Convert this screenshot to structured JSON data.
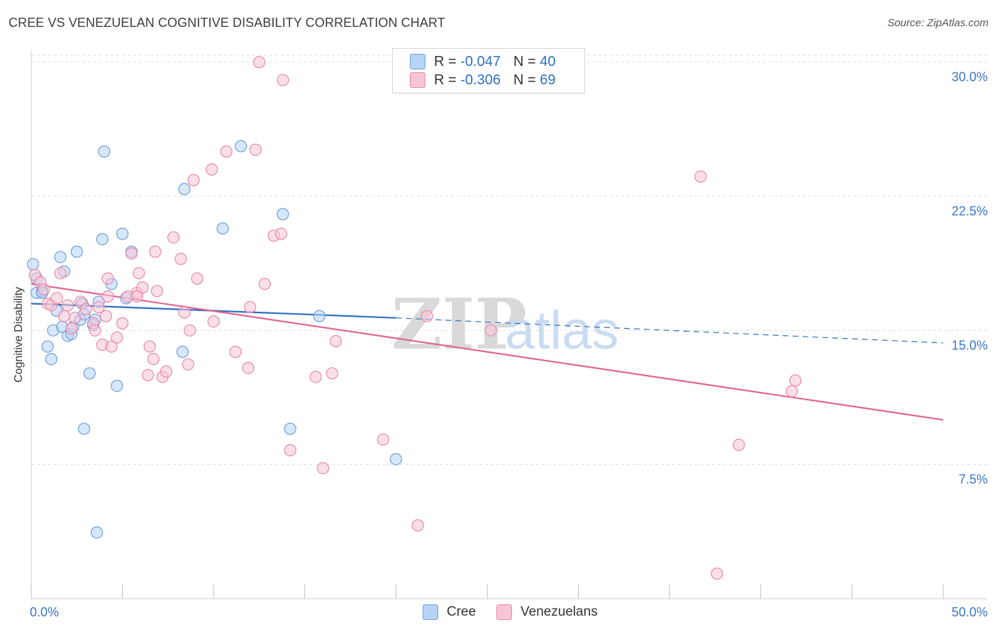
{
  "title": "CREE VS VENEZUELAN COGNITIVE DISABILITY CORRELATION CHART",
  "source": "Source: ZipAtlas.com",
  "watermark": {
    "zip": "ZIP",
    "atlas": "atlas"
  },
  "legend_top": [
    {
      "r_label": "R =",
      "r_value": "-0.047",
      "n_label": "N =",
      "n_value": "40"
    },
    {
      "r_label": "R =",
      "r_value": "-0.306",
      "n_label": "N =",
      "n_value": "69"
    }
  ],
  "legend_bottom": [
    {
      "label": "Cree"
    },
    {
      "label": "Venezuelans"
    }
  ],
  "colors": {
    "cree_fill": "#b7d3f5",
    "cree_stroke": "#6f9fdc",
    "cree_line": "#2e6fc4",
    "venez_fill": "#f8c5d6",
    "venez_stroke": "#e88aaa",
    "venez_line": "#e06592",
    "tick_text": "#3a76c8",
    "grid": "#dddddd"
  },
  "chart_data": {
    "type": "scatter",
    "title": "CREE VS VENEZUELAN COGNITIVE DISABILITY CORRELATION CHART",
    "xlabel": "",
    "ylabel": "Cognitive Disability",
    "xlim": [
      0,
      50
    ],
    "ylim": [
      0,
      30.7
    ],
    "x_tick_labels": [
      {
        "value": 0,
        "label": "0.0%"
      },
      {
        "value": 50,
        "label": "50.0%"
      }
    ],
    "y_ticks": [
      {
        "value": 7.5,
        "label": "7.5%"
      },
      {
        "value": 15.0,
        "label": "15.0%"
      },
      {
        "value": 22.5,
        "label": "22.5%"
      },
      {
        "value": 30.0,
        "label": "30.0%"
      }
    ],
    "x_minor_ticks": [
      0,
      5,
      10,
      15,
      20,
      25,
      30,
      35,
      40,
      45,
      50
    ],
    "grid": true,
    "legend_placement": "top-center",
    "series": [
      {
        "name": "Cree",
        "points": [
          [
            0.1,
            18.7
          ],
          [
            0.3,
            17.9
          ],
          [
            0.3,
            17.1
          ],
          [
            0.6,
            17.2
          ],
          [
            0.6,
            17.1
          ],
          [
            0.9,
            14.1
          ],
          [
            1.1,
            13.4
          ],
          [
            1.2,
            15.0
          ],
          [
            1.4,
            16.1
          ],
          [
            1.6,
            19.1
          ],
          [
            1.7,
            15.2
          ],
          [
            1.8,
            18.3
          ],
          [
            2.0,
            14.7
          ],
          [
            2.2,
            14.8
          ],
          [
            2.3,
            15.2
          ],
          [
            2.5,
            19.4
          ],
          [
            2.7,
            15.6
          ],
          [
            2.8,
            16.5
          ],
          [
            2.9,
            15.9
          ],
          [
            2.9,
            9.5
          ],
          [
            3.2,
            12.6
          ],
          [
            3.4,
            15.3
          ],
          [
            3.5,
            15.6
          ],
          [
            3.6,
            3.7
          ],
          [
            3.7,
            16.6
          ],
          [
            3.9,
            20.1
          ],
          [
            4.0,
            25.0
          ],
          [
            4.4,
            17.6
          ],
          [
            4.7,
            11.9
          ],
          [
            5.0,
            20.4
          ],
          [
            5.2,
            16.8
          ],
          [
            5.5,
            19.4
          ],
          [
            8.3,
            13.8
          ],
          [
            8.4,
            22.9
          ],
          [
            10.5,
            20.7
          ],
          [
            11.5,
            25.3
          ],
          [
            13.8,
            21.5
          ],
          [
            14.2,
            9.5
          ],
          [
            20.0,
            7.8
          ],
          [
            15.8,
            15.8
          ]
        ]
      },
      {
        "name": "Venezuelans",
        "points": [
          [
            0.2,
            18.1
          ],
          [
            0.5,
            17.7
          ],
          [
            0.7,
            17.3
          ],
          [
            0.9,
            16.5
          ],
          [
            1.1,
            16.4
          ],
          [
            1.4,
            16.8
          ],
          [
            1.6,
            18.2
          ],
          [
            1.8,
            15.8
          ],
          [
            2.0,
            16.4
          ],
          [
            2.2,
            15.1
          ],
          [
            2.4,
            15.7
          ],
          [
            2.7,
            16.6
          ],
          [
            3.0,
            16.2
          ],
          [
            3.4,
            15.4
          ],
          [
            3.5,
            15.0
          ],
          [
            3.7,
            16.3
          ],
          [
            3.9,
            14.2
          ],
          [
            4.1,
            15.8
          ],
          [
            4.2,
            17.9
          ],
          [
            4.4,
            14.1
          ],
          [
            4.7,
            14.6
          ],
          [
            5.0,
            15.4
          ],
          [
            5.3,
            16.9
          ],
          [
            5.5,
            19.3
          ],
          [
            5.8,
            17.1
          ],
          [
            5.9,
            18.2
          ],
          [
            6.1,
            17.4
          ],
          [
            6.4,
            12.5
          ],
          [
            6.5,
            14.1
          ],
          [
            6.7,
            13.4
          ],
          [
            6.9,
            17.2
          ],
          [
            7.2,
            12.4
          ],
          [
            7.4,
            12.7
          ],
          [
            7.8,
            20.2
          ],
          [
            8.2,
            19.0
          ],
          [
            8.4,
            16.0
          ],
          [
            8.6,
            13.1
          ],
          [
            8.7,
            15.0
          ],
          [
            8.9,
            23.4
          ],
          [
            9.1,
            17.9
          ],
          [
            9.9,
            24.0
          ],
          [
            10.0,
            15.5
          ],
          [
            10.7,
            25.0
          ],
          [
            11.2,
            13.8
          ],
          [
            11.9,
            12.9
          ],
          [
            12.0,
            16.3
          ],
          [
            12.3,
            25.1
          ],
          [
            12.5,
            30.0
          ],
          [
            12.8,
            17.6
          ],
          [
            13.3,
            20.3
          ],
          [
            13.7,
            20.4
          ],
          [
            13.8,
            29.0
          ],
          [
            14.2,
            8.3
          ],
          [
            15.6,
            12.4
          ],
          [
            16.0,
            7.3
          ],
          [
            16.5,
            12.6
          ],
          [
            16.7,
            14.4
          ],
          [
            19.3,
            8.9
          ],
          [
            21.2,
            4.1
          ],
          [
            21.7,
            15.8
          ],
          [
            25.2,
            15.0
          ],
          [
            36.7,
            23.6
          ],
          [
            37.6,
            1.4
          ],
          [
            38.8,
            8.6
          ],
          [
            41.7,
            11.6
          ],
          [
            41.9,
            12.2
          ],
          [
            4.2,
            16.9
          ],
          [
            6.8,
            19.4
          ],
          [
            5.8,
            16.9
          ]
        ]
      }
    ],
    "trend_lines": [
      {
        "series": "Cree",
        "solid": [
          [
            0,
            16.5
          ],
          [
            20,
            15.7
          ]
        ],
        "dashed": [
          [
            20,
            15.7
          ],
          [
            50,
            14.3
          ]
        ]
      },
      {
        "series": "Venezuelans",
        "solid": [
          [
            0,
            17.6
          ],
          [
            50,
            10.0
          ]
        ]
      }
    ]
  }
}
